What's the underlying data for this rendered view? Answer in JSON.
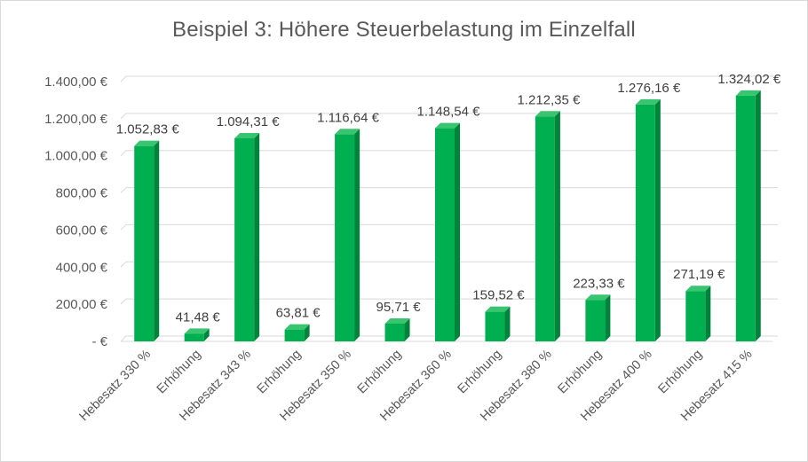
{
  "chart_data": {
    "type": "bar",
    "title": "Beispiel 3: Höhere Steuerbelastung im Einzelfall",
    "categories": [
      "Hebesatz 330 %",
      "Erhöhung",
      "Hebesatz 343 %",
      "Erhöhung",
      "Hebesatz 350 %",
      "Erhöhung",
      "Hebesatz 360 %",
      "Erhöhung",
      "Hebesatz 380 %",
      "Erhöhung",
      "Hebesatz 400 %",
      "Erhöhung",
      "Hebesatz 415 %"
    ],
    "values": [
      1052.83,
      41.48,
      1094.31,
      63.81,
      1116.64,
      95.71,
      1148.54,
      159.52,
      1212.35,
      223.33,
      1276.16,
      271.19,
      1324.02
    ],
    "data_labels": [
      "1.052,83 €",
      "41,48 €",
      "1.094,31 €",
      "63,81 €",
      "1.116,64 €",
      "95,71 €",
      "1.148,54 €",
      "159,52 €",
      "1.212,35 €",
      "223,33 €",
      "1.276,16 €",
      "271,19 €",
      "1.324,02 €"
    ],
    "ylim": [
      0,
      1400
    ],
    "y_ticks": [
      0,
      200,
      400,
      600,
      800,
      1000,
      1200,
      1400
    ],
    "y_tick_labels": [
      "-  €",
      "200,00 €",
      "400,00 €",
      "600,00 €",
      "800,00 €",
      "1.000,00 €",
      "1.200,00 €",
      "1.400,00 €"
    ],
    "grid": true,
    "legend": "none",
    "colors": {
      "bar_front": "#00b050",
      "bar_side": "#00843c",
      "bar_top": "#39c46f",
      "grid": "#d9d9d9"
    }
  }
}
